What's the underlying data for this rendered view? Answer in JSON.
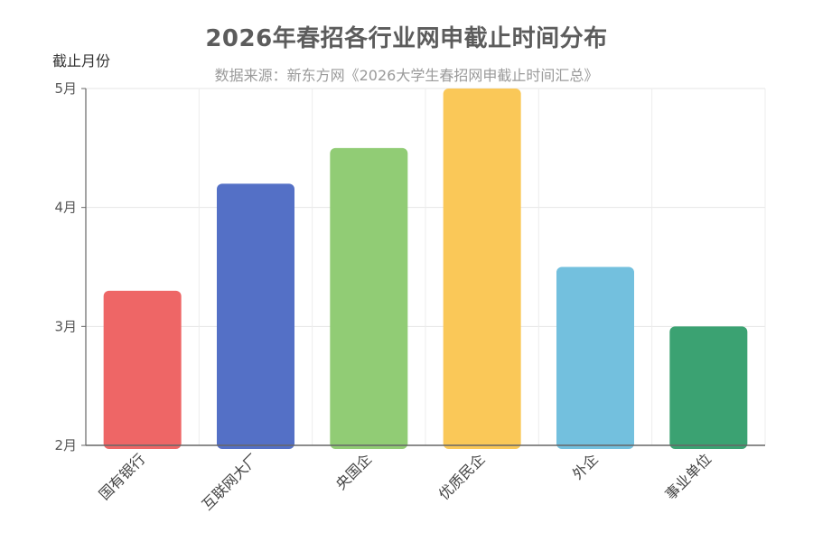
{
  "chart_data": {
    "type": "bar",
    "title": "2026年春招各行业网申截止时间分布",
    "subtitle": "数据来源：新东方网《2026大学生春招网申截止时间汇总》",
    "ylabel": "截止月份",
    "xlabel": "",
    "categories": [
      "国有银行",
      "互联网大厂",
      "央国企",
      "优质民企",
      "外企",
      "事业单位"
    ],
    "values": [
      3.3,
      4.2,
      4.5,
      5.0,
      3.5,
      3.0
    ],
    "colors": [
      "#ee6666",
      "#5470c6",
      "#91cc75",
      "#fac858",
      "#73c0de",
      "#3ba272"
    ],
    "ylim": [
      2,
      5
    ],
    "yticks": [
      {
        "value": 2,
        "label": "2月"
      },
      {
        "value": 3,
        "label": "3月"
      },
      {
        "value": 4,
        "label": "4月"
      },
      {
        "value": 5,
        "label": "5月"
      }
    ],
    "grid": true
  }
}
